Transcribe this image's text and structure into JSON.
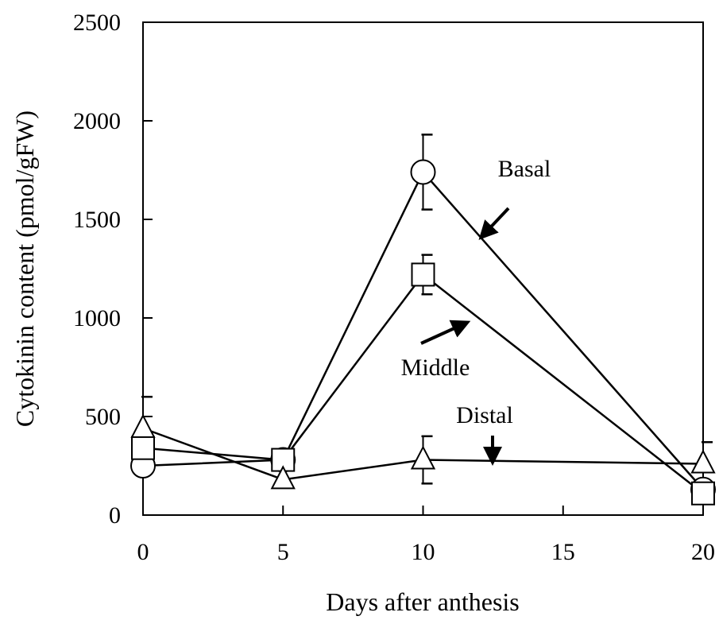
{
  "chart_data": {
    "type": "line",
    "xlabel": "Days after anthesis",
    "ylabel": "Cytokinin content (pmol/gFW)",
    "xlim": [
      0,
      20
    ],
    "ylim": [
      0,
      2500
    ],
    "xticks": [
      0,
      5,
      10,
      15,
      20
    ],
    "yticks": [
      0,
      500,
      1000,
      1500,
      2000,
      2500
    ],
    "grid": false,
    "series": [
      {
        "name": "Basal",
        "marker": "circle",
        "x": [
          0,
          5,
          10,
          20
        ],
        "y": [
          250,
          280,
          1740,
          130
        ],
        "error": [
          null,
          null,
          190,
          null
        ]
      },
      {
        "name": "Middle",
        "marker": "square",
        "x": [
          0,
          5,
          10,
          20
        ],
        "y": [
          340,
          280,
          1220,
          110
        ],
        "error": [
          null,
          null,
          100,
          null
        ]
      },
      {
        "name": "Distal",
        "marker": "triangle",
        "x": [
          0,
          5,
          10,
          20
        ],
        "y": [
          440,
          180,
          280,
          260
        ],
        "error": [
          160,
          null,
          120,
          110
        ]
      }
    ],
    "annotations": [
      {
        "text": "Basal",
        "series": "Basal"
      },
      {
        "text": "Middle",
        "series": "Middle"
      },
      {
        "text": "Distal",
        "series": "Distal"
      }
    ]
  }
}
